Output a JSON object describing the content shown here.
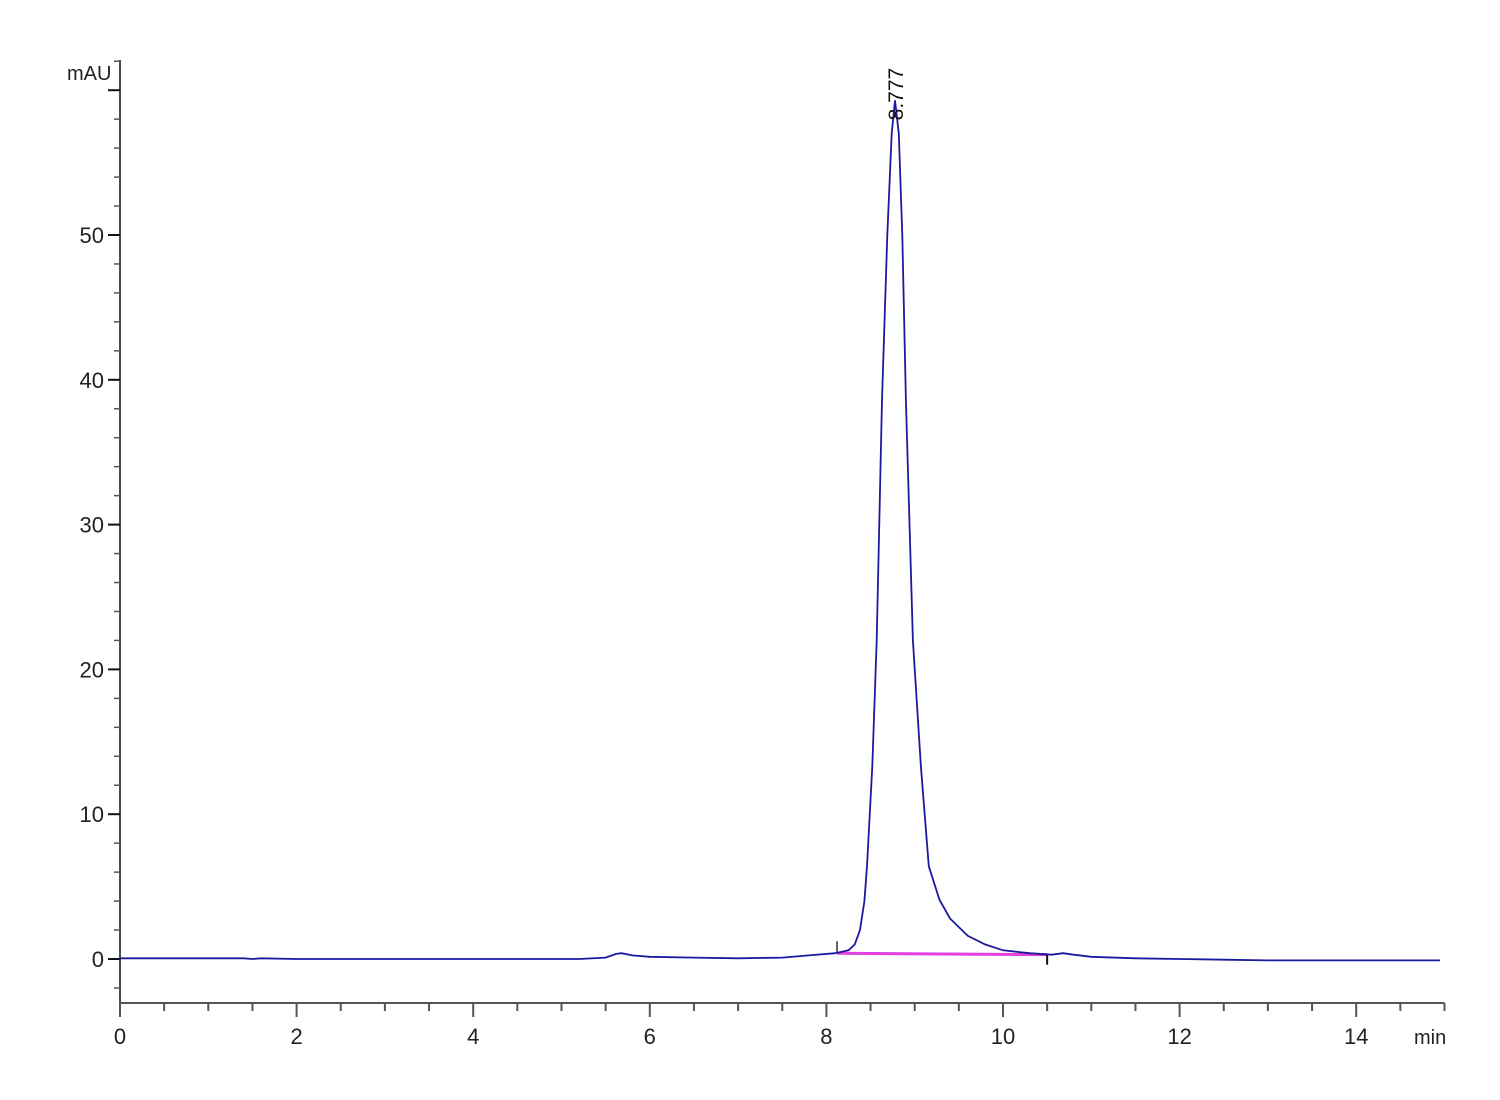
{
  "chart_data": {
    "type": "line",
    "title": "",
    "xlabel": "min",
    "ylabel": "mAU",
    "xlim": [
      0,
      15
    ],
    "ylim": [
      -3,
      62
    ],
    "x_ticks": [
      0,
      2,
      4,
      6,
      8,
      10,
      12,
      14
    ],
    "x_tick_labels": [
      "0",
      "2",
      "4",
      "6",
      "8",
      "10",
      "12",
      "14"
    ],
    "y_ticks": [
      0,
      10,
      20,
      30,
      40,
      50
    ],
    "y_tick_labels": [
      "0",
      "10",
      "20",
      "30",
      "40",
      "50"
    ],
    "grid": false,
    "colors": {
      "signal": "#1a1aa0",
      "baseline": "#e040e0",
      "axis": "#555555"
    },
    "series": [
      {
        "points": [
          [
            0,
            0.05
          ],
          [
            1.4,
            0.05
          ],
          [
            1.5,
            0.0
          ],
          [
            1.6,
            0.05
          ],
          [
            2,
            0.0
          ],
          [
            4,
            0.0
          ],
          [
            5.2,
            0.0
          ],
          [
            5.5,
            0.1
          ],
          [
            5.62,
            0.35
          ],
          [
            5.68,
            0.4
          ],
          [
            5.8,
            0.25
          ],
          [
            6.0,
            0.15
          ],
          [
            6.5,
            0.1
          ],
          [
            7,
            0.05
          ],
          [
            7.5,
            0.1
          ],
          [
            7.8,
            0.25
          ],
          [
            8.1,
            0.4
          ],
          [
            8.25,
            0.6
          ],
          [
            8.32,
            1.0
          ],
          [
            8.38,
            2.0
          ],
          [
            8.43,
            4.0
          ],
          [
            8.46,
            6.4
          ],
          [
            8.52,
            13.3
          ],
          [
            8.57,
            22
          ],
          [
            8.63,
            38.6
          ],
          [
            8.69,
            50
          ],
          [
            8.74,
            57
          ],
          [
            8.777,
            59.3
          ],
          [
            8.82,
            57
          ],
          [
            8.86,
            50
          ],
          [
            8.9,
            38.6
          ],
          [
            8.98,
            22
          ],
          [
            9.07,
            13.3
          ],
          [
            9.16,
            6.4
          ],
          [
            9.28,
            4.1
          ],
          [
            9.4,
            2.8
          ],
          [
            9.6,
            1.6
          ],
          [
            9.8,
            1.0
          ],
          [
            10.0,
            0.6
          ],
          [
            10.3,
            0.4
          ],
          [
            10.55,
            0.3
          ],
          [
            10.68,
            0.4
          ],
          [
            10.8,
            0.3
          ],
          [
            11.0,
            0.15
          ],
          [
            11.5,
            0.05
          ],
          [
            12,
            0.0
          ],
          [
            12.5,
            -0.05
          ],
          [
            13,
            -0.1
          ],
          [
            14,
            -0.1
          ],
          [
            14.95,
            -0.1
          ]
        ]
      }
    ],
    "integration_baseline": {
      "start": [
        8.12,
        0.4
      ],
      "end": [
        10.5,
        0.3
      ]
    },
    "annotations": [
      {
        "text": "8.777",
        "x": 8.777,
        "y": 59.3
      }
    ]
  }
}
